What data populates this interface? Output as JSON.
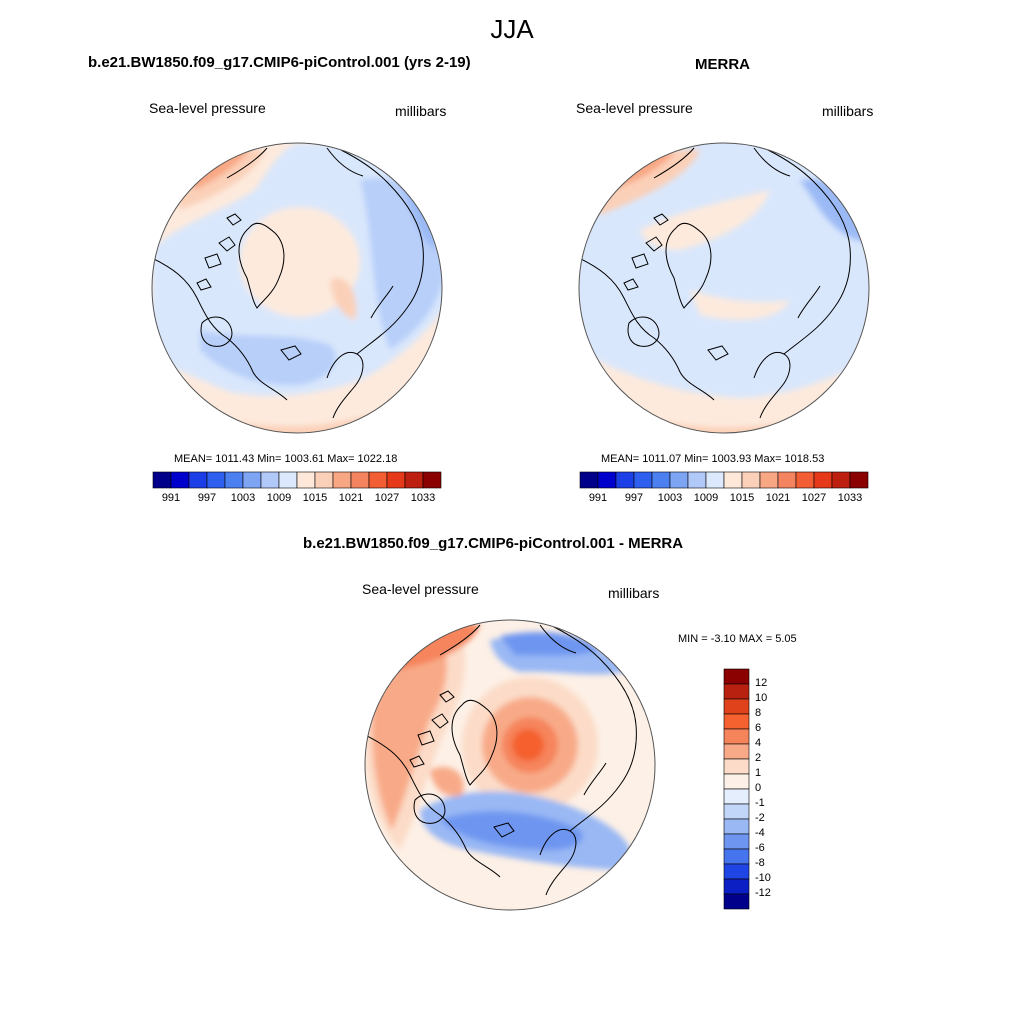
{
  "figure": {
    "title": "JJA",
    "colors": {
      "land_outline": "#000000",
      "globe_border": "#555555",
      "background": "#ffffff"
    }
  },
  "panels": [
    {
      "id": "model",
      "title": "b.e21.BW1850.f09_g17.CMIP6-piControl.001 (yrs 2-19)",
      "left_label": "Sea-level pressure",
      "right_label": "millibars",
      "stats": "MEAN= 1011.43  Min= 1003.61  Max= 1022.18",
      "colorbar_ticks": [
        "991",
        "997",
        "1003",
        "1009",
        "1015",
        "1021",
        "1027",
        "1033"
      ]
    },
    {
      "id": "obs",
      "title": "MERRA",
      "left_label": "Sea-level pressure",
      "right_label": "millibars",
      "stats": "MEAN= 1011.07  Min= 1003.93  Max= 1018.53",
      "colorbar_ticks": [
        "991",
        "997",
        "1003",
        "1009",
        "1015",
        "1021",
        "1027",
        "1033"
      ]
    },
    {
      "id": "diff",
      "title": "b.e21.BW1850.f09_g17.CMIP6-piControl.001 - MERRA",
      "left_label": "Sea-level pressure",
      "right_label": "millibars",
      "stats": "MIN =  -3.10 MAX =   5.05",
      "colorbar_ticks": [
        "12",
        "10",
        "8",
        "6",
        "4",
        "2",
        "1",
        "0",
        "-1",
        "-2",
        "-4",
        "-6",
        "-8",
        "-10",
        "-12"
      ]
    }
  ],
  "palettes": {
    "abs": [
      "#00008b",
      "#0000cd",
      "#1c3ee6",
      "#2e5fee",
      "#4c7ff0",
      "#7ea4f4",
      "#b0c9f8",
      "#dce9fc",
      "#fde8d9",
      "#fbd0b8",
      "#f8a784",
      "#f4845f",
      "#f25d34",
      "#e5391a",
      "#bd1f10",
      "#8b0000"
    ],
    "diff": [
      "#8b0000",
      "#b8210f",
      "#e0421c",
      "#f5612f",
      "#f6845b",
      "#f8aa88",
      "#fcdcc8",
      "#fdf0e6",
      "#e4eefd",
      "#c1d6f8",
      "#99b8f4",
      "#6e96f0",
      "#4674ed",
      "#1f46e4",
      "#0b1fc4",
      "#00008b"
    ]
  }
}
